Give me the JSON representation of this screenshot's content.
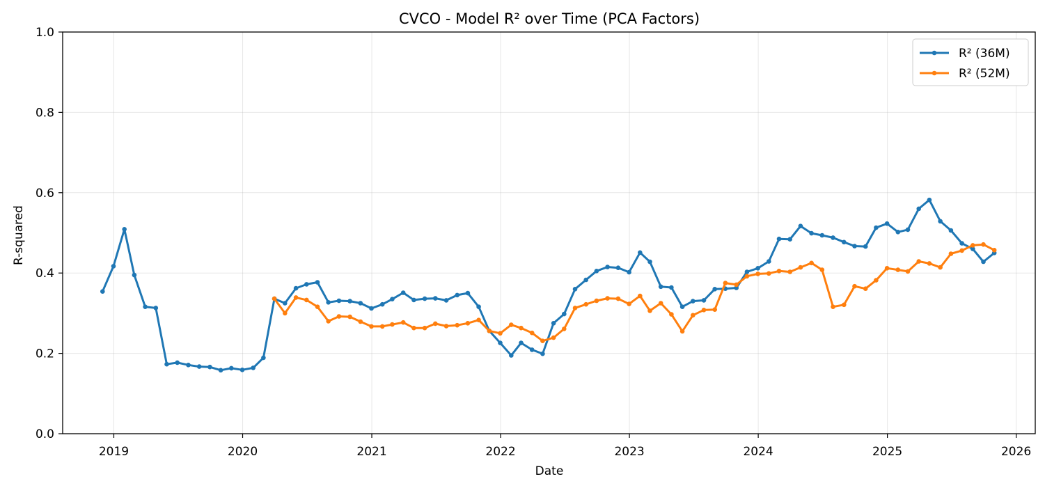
{
  "chart_data": {
    "type": "line",
    "title": "CVCO - Model R² over Time (PCA Factors)",
    "xlabel": "Date",
    "ylabel": "R-squared",
    "xlim": [
      "2018-08-09",
      "2026-02-24"
    ],
    "ylim": [
      0,
      1.0
    ],
    "x_ticks": [
      "2019",
      "2020",
      "2021",
      "2022",
      "2023",
      "2024",
      "2025",
      "2026"
    ],
    "y_ticks": [
      "0.0",
      "0.2",
      "0.4",
      "0.6",
      "0.8",
      "1.0"
    ],
    "grid": true,
    "legend_position": "top-right",
    "series": [
      {
        "name": "R² (36M)",
        "color": "#1f77b4",
        "points": [
          [
            "2018-11-30",
            0.354
          ],
          [
            "2018-12-31",
            0.417
          ],
          [
            "2019-01-31",
            0.509
          ],
          [
            "2019-02-28",
            0.395
          ],
          [
            "2019-03-31",
            0.316
          ],
          [
            "2019-04-30",
            0.313
          ],
          [
            "2019-05-31",
            0.173
          ],
          [
            "2019-06-30",
            0.177
          ],
          [
            "2019-07-31",
            0.171
          ],
          [
            "2019-08-31",
            0.167
          ],
          [
            "2019-09-30",
            0.166
          ],
          [
            "2019-10-31",
            0.158
          ],
          [
            "2019-11-30",
            0.163
          ],
          [
            "2019-12-31",
            0.159
          ],
          [
            "2020-01-31",
            0.164
          ],
          [
            "2020-02-29",
            0.189
          ],
          [
            "2020-03-31",
            0.336
          ],
          [
            "2020-04-30",
            0.325
          ],
          [
            "2020-05-31",
            0.362
          ],
          [
            "2020-06-30",
            0.372
          ],
          [
            "2020-07-31",
            0.377
          ],
          [
            "2020-08-31",
            0.327
          ],
          [
            "2020-09-30",
            0.331
          ],
          [
            "2020-10-31",
            0.33
          ],
          [
            "2020-11-30",
            0.325
          ],
          [
            "2020-12-31",
            0.312
          ],
          [
            "2021-01-31",
            0.322
          ],
          [
            "2021-02-28",
            0.335
          ],
          [
            "2021-03-31",
            0.351
          ],
          [
            "2021-04-30",
            0.333
          ],
          [
            "2021-05-31",
            0.336
          ],
          [
            "2021-06-30",
            0.337
          ],
          [
            "2021-07-31",
            0.332
          ],
          [
            "2021-08-31",
            0.345
          ],
          [
            "2021-09-30",
            0.35
          ],
          [
            "2021-10-31",
            0.316
          ],
          [
            "2021-11-30",
            0.256
          ],
          [
            "2021-12-31",
            0.226
          ],
          [
            "2022-01-31",
            0.195
          ],
          [
            "2022-02-28",
            0.226
          ],
          [
            "2022-03-31",
            0.209
          ],
          [
            "2022-04-30",
            0.199
          ],
          [
            "2022-05-31",
            0.275
          ],
          [
            "2022-06-30",
            0.298
          ],
          [
            "2022-07-31",
            0.36
          ],
          [
            "2022-08-31",
            0.383
          ],
          [
            "2022-09-30",
            0.405
          ],
          [
            "2022-10-31",
            0.415
          ],
          [
            "2022-11-30",
            0.413
          ],
          [
            "2022-12-31",
            0.402
          ],
          [
            "2023-01-31",
            0.451
          ],
          [
            "2023-02-28",
            0.428
          ],
          [
            "2023-03-31",
            0.366
          ],
          [
            "2023-04-30",
            0.364
          ],
          [
            "2023-05-31",
            0.316
          ],
          [
            "2023-06-30",
            0.33
          ],
          [
            "2023-07-31",
            0.332
          ],
          [
            "2023-08-31",
            0.36
          ],
          [
            "2023-09-30",
            0.361
          ],
          [
            "2023-10-31",
            0.363
          ],
          [
            "2023-11-30",
            0.403
          ],
          [
            "2023-12-31",
            0.412
          ],
          [
            "2024-01-31",
            0.429
          ],
          [
            "2024-02-29",
            0.485
          ],
          [
            "2024-03-31",
            0.484
          ],
          [
            "2024-04-30",
            0.517
          ],
          [
            "2024-05-31",
            0.499
          ],
          [
            "2024-06-30",
            0.494
          ],
          [
            "2024-07-31",
            0.488
          ],
          [
            "2024-08-31",
            0.477
          ],
          [
            "2024-09-30",
            0.467
          ],
          [
            "2024-10-31",
            0.466
          ],
          [
            "2024-11-30",
            0.513
          ],
          [
            "2024-12-31",
            0.523
          ],
          [
            "2025-01-31",
            0.502
          ],
          [
            "2025-02-28",
            0.508
          ],
          [
            "2025-03-31",
            0.56
          ],
          [
            "2025-04-30",
            0.582
          ],
          [
            "2025-05-31",
            0.529
          ],
          [
            "2025-06-30",
            0.506
          ],
          [
            "2025-07-31",
            0.474
          ],
          [
            "2025-08-31",
            0.46
          ],
          [
            "2025-09-30",
            0.428
          ],
          [
            "2025-10-31",
            0.45
          ]
        ]
      },
      {
        "name": "R² (52M)",
        "color": "#ff7f0e",
        "points": [
          [
            "2020-03-31",
            0.336
          ],
          [
            "2020-04-30",
            0.3
          ],
          [
            "2020-05-31",
            0.339
          ],
          [
            "2020-06-30",
            0.333
          ],
          [
            "2020-07-31",
            0.316
          ],
          [
            "2020-08-31",
            0.28
          ],
          [
            "2020-09-30",
            0.292
          ],
          [
            "2020-10-31",
            0.291
          ],
          [
            "2020-11-30",
            0.279
          ],
          [
            "2020-12-31",
            0.267
          ],
          [
            "2021-01-31",
            0.267
          ],
          [
            "2021-02-28",
            0.272
          ],
          [
            "2021-03-31",
            0.277
          ],
          [
            "2021-04-30",
            0.263
          ],
          [
            "2021-05-31",
            0.263
          ],
          [
            "2021-06-30",
            0.274
          ],
          [
            "2021-07-31",
            0.268
          ],
          [
            "2021-08-31",
            0.27
          ],
          [
            "2021-09-30",
            0.275
          ],
          [
            "2021-10-31",
            0.283
          ],
          [
            "2021-11-30",
            0.256
          ],
          [
            "2021-12-31",
            0.25
          ],
          [
            "2022-01-31",
            0.271
          ],
          [
            "2022-02-28",
            0.263
          ],
          [
            "2022-03-31",
            0.251
          ],
          [
            "2022-04-30",
            0.231
          ],
          [
            "2022-05-31",
            0.239
          ],
          [
            "2022-06-30",
            0.261
          ],
          [
            "2022-07-31",
            0.313
          ],
          [
            "2022-08-31",
            0.322
          ],
          [
            "2022-09-30",
            0.331
          ],
          [
            "2022-10-31",
            0.337
          ],
          [
            "2022-11-30",
            0.336
          ],
          [
            "2022-12-31",
            0.323
          ],
          [
            "2023-01-31",
            0.343
          ],
          [
            "2023-02-28",
            0.306
          ],
          [
            "2023-03-31",
            0.325
          ],
          [
            "2023-04-30",
            0.297
          ],
          [
            "2023-05-31",
            0.255
          ],
          [
            "2023-06-30",
            0.295
          ],
          [
            "2023-07-31",
            0.308
          ],
          [
            "2023-08-31",
            0.309
          ],
          [
            "2023-09-30",
            0.375
          ],
          [
            "2023-10-31",
            0.371
          ],
          [
            "2023-11-30",
            0.392
          ],
          [
            "2023-12-31",
            0.398
          ],
          [
            "2024-01-31",
            0.399
          ],
          [
            "2024-02-29",
            0.405
          ],
          [
            "2024-03-31",
            0.403
          ],
          [
            "2024-04-30",
            0.414
          ],
          [
            "2024-05-31",
            0.425
          ],
          [
            "2024-06-30",
            0.408
          ],
          [
            "2024-07-31",
            0.316
          ],
          [
            "2024-08-31",
            0.321
          ],
          [
            "2024-09-30",
            0.367
          ],
          [
            "2024-10-31",
            0.361
          ],
          [
            "2024-11-30",
            0.382
          ],
          [
            "2024-12-31",
            0.412
          ],
          [
            "2025-01-31",
            0.408
          ],
          [
            "2025-02-28",
            0.404
          ],
          [
            "2025-03-31",
            0.429
          ],
          [
            "2025-04-30",
            0.424
          ],
          [
            "2025-05-31",
            0.414
          ],
          [
            "2025-06-30",
            0.448
          ],
          [
            "2025-07-31",
            0.456
          ],
          [
            "2025-08-31",
            0.469
          ],
          [
            "2025-09-30",
            0.471
          ],
          [
            "2025-10-31",
            0.457
          ]
        ]
      }
    ]
  }
}
